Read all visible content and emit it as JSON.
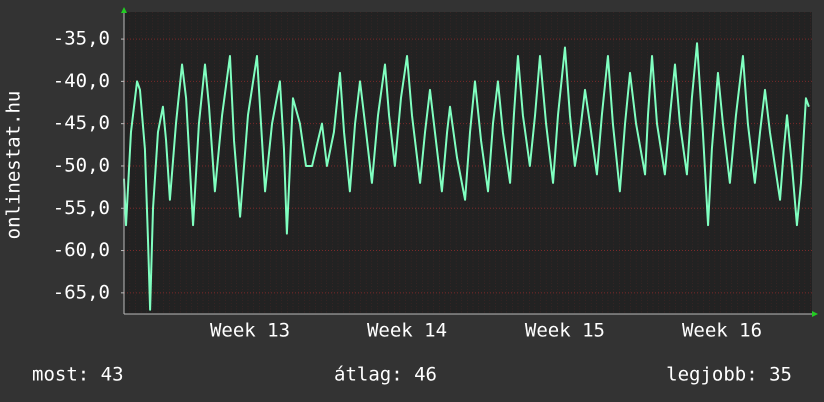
{
  "chart_data": {
    "type": "line",
    "y_label": "onlinestat.hu",
    "color": "#80ffc0",
    "x": [
      0,
      0.09,
      0.31,
      0.58,
      0.71,
      0.93,
      1.07,
      1.16,
      1.29,
      1.51,
      1.73,
      1.87,
      2.04,
      2.31,
      2.58,
      2.76,
      3.07,
      3.33,
      3.6,
      3.78,
      4.04,
      4.36,
      4.71,
      4.89,
      5.16,
      5.51,
      5.91,
      6.09,
      6.27,
      6.58,
      6.93,
      7.11,
      7.24,
      7.51,
      7.82,
      8.09,
      8.36,
      8.62,
      8.8,
      9.02,
      9.33,
      9.6,
      9.78,
      10.04,
      10.27,
      10.49,
      10.76,
      11.02,
      11.29,
      11.6,
      11.78,
      12.04,
      12.31,
      12.58,
      12.8,
      13.16,
      13.38,
      13.6,
      13.82,
      14.13,
      14.36,
      14.49,
      14.8,
      15.16,
      15.38,
      15.6,
      15.87,
      16.18,
      16.4,
      16.62,
      16.84,
      17.16,
      17.33,
      17.51,
      17.73,
      18.04,
      18.27,
      18.49,
      18.76,
      19.07,
      19.29,
      19.6,
      19.82,
      20.04,
      20.27,
      20.49,
      20.71,
      21.02,
      21.24,
      21.51,
      21.73,
      22.04,
      22.27,
      22.49,
      22.76,
      23.16,
      23.29,
      23.47,
      23.69,
      24.04,
      24.27,
      24.49,
      24.71,
      25.02,
      25.24,
      25.47,
      25.73,
      25.96,
      26.13,
      26.4,
      26.62,
      26.93,
      27.2,
      27.51,
      27.73,
      28.04,
      28.27,
      28.49,
      28.71,
      29.16,
      29.33,
      29.47,
      29.69,
      29.91,
      30.09,
      30.31,
      30.44
    ],
    "values": [
      -51.5,
      -57,
      -46,
      -40,
      -41,
      -48,
      -59,
      -67,
      -55,
      -46,
      -43,
      -47,
      -54,
      -45,
      -38,
      -42,
      -57,
      -45,
      -38,
      -43,
      -53,
      -44,
      -37,
      -47,
      -56,
      -44,
      -37,
      -45,
      -53,
      -45,
      -40,
      -48,
      -58,
      -42,
      -45,
      -50,
      -50,
      -47,
      -45,
      -50,
      -46,
      -39,
      -46,
      -53,
      -45,
      -40,
      -46,
      -52,
      -44,
      -38,
      -44,
      -50,
      -42,
      -37,
      -44,
      -52,
      -46,
      -41,
      -46,
      -53,
      -46,
      -43,
      -49,
      -54,
      -46,
      -40,
      -47,
      -53,
      -45,
      -40,
      -46,
      -52,
      -44,
      -37,
      -44,
      -50,
      -44,
      -37,
      -45,
      -52,
      -44,
      -36,
      -44,
      -50,
      -46,
      -41,
      -45,
      -51,
      -44,
      -37,
      -45,
      -53,
      -45,
      -39,
      -45,
      -51,
      -44,
      -37,
      -45,
      -51,
      -44,
      -38,
      -45,
      -51,
      -42,
      -35.5,
      -46,
      -57,
      -48,
      -39,
      -45,
      -52,
      -44,
      -37,
      -45,
      -52,
      -46,
      -41,
      -46,
      -54,
      -48,
      -44,
      -50,
      -57,
      -52,
      -42,
      -43
    ],
    "xlim": [
      0,
      30.58
    ],
    "xticks": [
      {
        "value": 5.6,
        "label": "Week 13"
      },
      {
        "value": 12.58,
        "label": "Week 14"
      },
      {
        "value": 19.6,
        "label": "Week 15"
      },
      {
        "value": 26.58,
        "label": "Week 16"
      }
    ],
    "ylim": [
      -67.5,
      -31.8
    ],
    "yticks": [
      {
        "value": -35,
        "label": "-35,0"
      },
      {
        "value": -40,
        "label": "-40,0"
      },
      {
        "value": -45,
        "label": "-45,0"
      },
      {
        "value": -50,
        "label": "-50,0"
      },
      {
        "value": -55,
        "label": "-55,0"
      },
      {
        "value": -60,
        "label": "-60,0"
      },
      {
        "value": -65,
        "label": "-65,0"
      }
    ],
    "grid": true,
    "footer": [
      "most: 43",
      "átlag: 46",
      "legjobb: 35"
    ]
  }
}
